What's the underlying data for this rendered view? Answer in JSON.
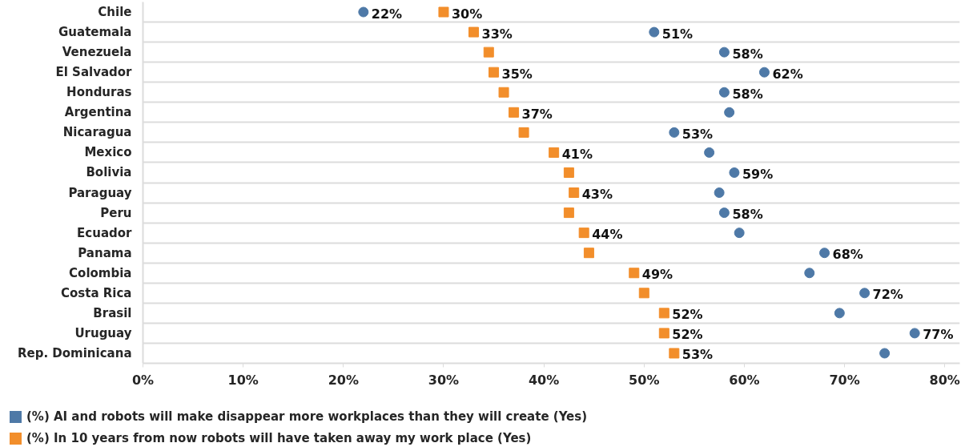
{
  "chart_data": {
    "type": "scatter",
    "orientation": "horizontal",
    "categories": [
      "Chile",
      "Guatemala",
      "Venezuela",
      "El Salvador",
      "Honduras",
      "Argentina",
      "Nicaragua",
      "Mexico",
      "Bolivia",
      "Paraguay",
      "Peru",
      "Ecuador",
      "Panama",
      "Colombia",
      "Costa Rica",
      "Brasil",
      "Uruguay",
      "Rep. Dominicana"
    ],
    "series": [
      {
        "name": "(%) AI and robots will make disappear more workplaces than they will create (Yes)",
        "color": "#4e79a7",
        "marker": "circle",
        "values": [
          22,
          51,
          58,
          62,
          58,
          58.5,
          53,
          56.5,
          59,
          57.5,
          58,
          59.5,
          68,
          66.5,
          72,
          69.5,
          77,
          74
        ],
        "value_labels": [
          "22%",
          "51%",
          "58%",
          "62%",
          "58%",
          null,
          "53%",
          null,
          "59%",
          null,
          "58%",
          null,
          "68%",
          null,
          "72%",
          null,
          "77%",
          null
        ]
      },
      {
        "name": "(%) In 10 years from now robots will have taken away my work place (Yes)",
        "color": "#f28e2b",
        "marker": "square",
        "values": [
          30,
          33,
          34.5,
          35,
          36,
          37,
          38,
          41,
          42.5,
          43,
          42.5,
          44,
          44.5,
          49,
          50,
          52,
          52,
          53
        ],
        "value_labels": [
          "30%",
          "33%",
          null,
          "35%",
          null,
          "37%",
          null,
          "41%",
          null,
          "43%",
          null,
          "44%",
          null,
          "49%",
          null,
          "52%",
          "52%",
          "53%"
        ]
      }
    ],
    "xlim": [
      0,
      81.5
    ],
    "xticks": [
      {
        "value": 0,
        "label": "0%"
      },
      {
        "value": 10,
        "label": "10%"
      },
      {
        "value": 20,
        "label": "20%"
      },
      {
        "value": 30,
        "label": "30%"
      },
      {
        "value": 40,
        "label": "40%"
      },
      {
        "value": 50,
        "label": "50%"
      },
      {
        "value": 60,
        "label": "60%"
      },
      {
        "value": 70,
        "label": "70%"
      },
      {
        "value": 80,
        "label": "80%"
      }
    ],
    "grid": "y",
    "legend": "bottom"
  }
}
